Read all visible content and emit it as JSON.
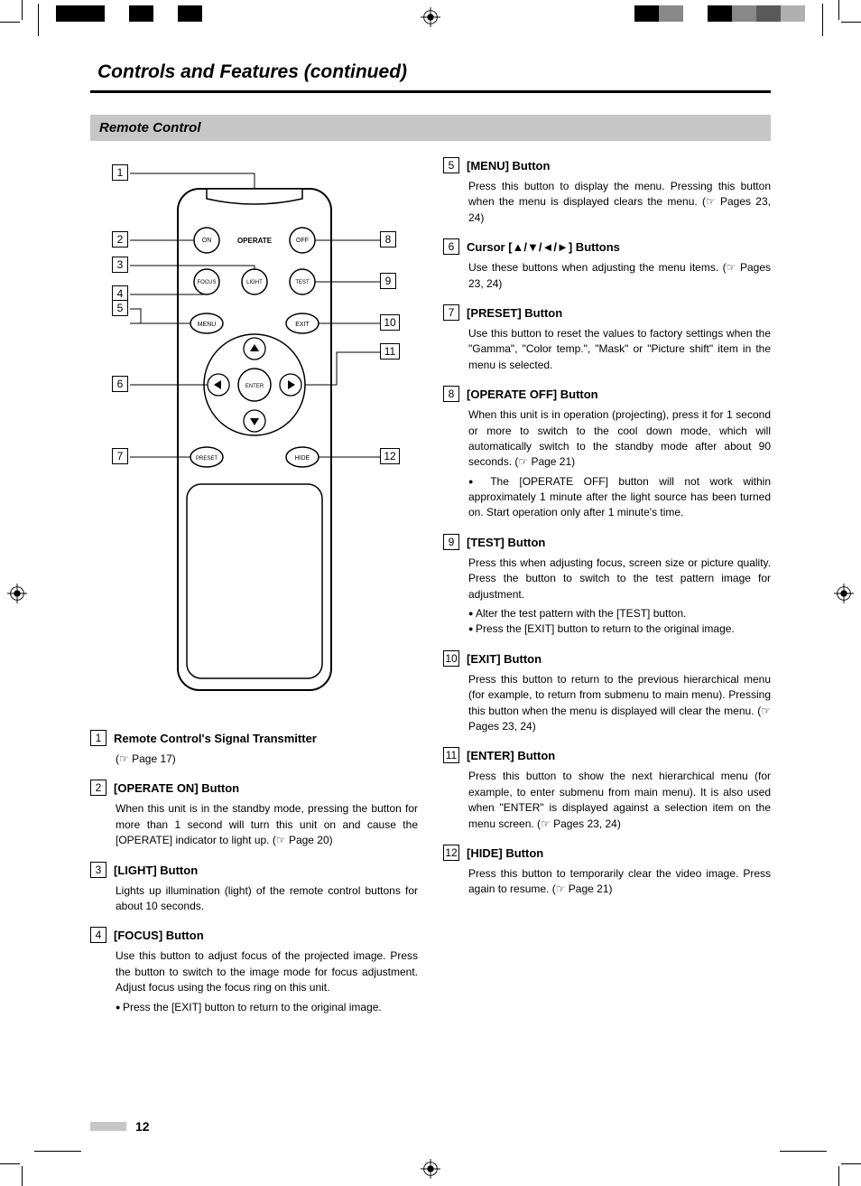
{
  "page": {
    "title": "Controls and Features (continued)",
    "section": "Remote Control",
    "number": "12"
  },
  "crop_colors_left": [
    "#000000",
    "#000000",
    "#ffffff",
    "#000000",
    "#ffffff",
    "#000000",
    "#ffffff",
    "#ffffff"
  ],
  "crop_colors_right": [
    "#ffffff",
    "#000000",
    "#888888",
    "#ffffff",
    "#000000",
    "#888888",
    "#5a5a5a",
    "#b0b0b0"
  ],
  "remote": {
    "buttons": {
      "on": "ON",
      "operate": "OPERATE",
      "off": "OFF",
      "focus": "FOCUS",
      "light": "LIGHT",
      "test": "TEST",
      "menu": "MENU",
      "exit": "EXIT",
      "enter": "ENTER",
      "preset": "PRESET",
      "hide": "HIDE"
    },
    "callouts": [
      "1",
      "2",
      "3",
      "4",
      "5",
      "6",
      "7",
      "8",
      "9",
      "10",
      "11",
      "12"
    ]
  },
  "items_left": [
    {
      "num": "1",
      "title": "Remote Control's Signal Transmitter",
      "body": "(☞ Page 17)",
      "bullets": []
    },
    {
      "num": "2",
      "title": "[OPERATE ON] Button",
      "body": "When this unit is in the standby mode, pressing the button for more than 1 second will turn this unit on and cause the [OPERATE] indicator to light up. (☞ Page 20)",
      "bullets": []
    },
    {
      "num": "3",
      "title": "[LIGHT] Button",
      "body": "Lights up illumination (light) of the remote control buttons for about 10 seconds.",
      "bullets": []
    },
    {
      "num": "4",
      "title": "[FOCUS] Button",
      "body": "Use this button to adjust focus of the projected image. Press the button to switch to the image mode for focus adjustment. Adjust focus using the focus ring on this unit.",
      "bullets": [
        "Press the [EXIT] button to return to the original image."
      ]
    }
  ],
  "items_right": [
    {
      "num": "5",
      "title": "[MENU] Button",
      "body": "Press this button to display the menu. Pressing this button when the menu is displayed clears the menu. (☞ Pages 23, 24)",
      "bullets": []
    },
    {
      "num": "6",
      "title": "Cursor [▲/▼/◄/►] Buttons",
      "body": "Use these buttons when adjusting the menu items. (☞ Pages 23, 24)",
      "bullets": []
    },
    {
      "num": "7",
      "title": "[PRESET] Button",
      "body": "Use this button to reset the values to factory settings when the \"Gamma\", \"Color temp.\", \"Mask\" or \"Picture shift\" item in the menu is selected.",
      "bullets": []
    },
    {
      "num": "8",
      "title": "[OPERATE OFF] Button",
      "body": "When this unit is in operation (projecting), press it for 1 second or more to switch to the cool down mode, which will automatically switch to the standby mode after about 90 seconds. (☞ Page 21)",
      "bullets": [
        "The [OPERATE OFF] button will not work within approximately 1 minute after the light source has been turned on. Start operation only after 1 minute's time."
      ]
    },
    {
      "num": "9",
      "title": "[TEST] Button",
      "body": "Press this when adjusting focus, screen size or picture quality. Press the button to switch to the test pattern image for adjustment.",
      "bullets": [
        "Alter the test pattern with the [TEST] button.",
        "Press the [EXIT] button to return to the original image."
      ]
    },
    {
      "num": "10",
      "title": "[EXIT] Button",
      "body": "Press this button to return to the previous hierarchical menu (for example, to return from submenu to main menu). Pressing this button when the menu is displayed will clear the menu. (☞ Pages 23, 24)",
      "bullets": []
    },
    {
      "num": "11",
      "title": "[ENTER] Button",
      "body": "Press this button to show the next hierarchical menu (for example, to enter submenu from main menu). It is also used when \"ENTER\" is displayed against a selection item on the menu screen. (☞ Pages 23, 24)",
      "bullets": []
    },
    {
      "num": "12",
      "title": "[HIDE] Button",
      "body": "Press this button to temporarily clear the video image. Press again to resume. (☞ Page 21)",
      "bullets": []
    }
  ]
}
